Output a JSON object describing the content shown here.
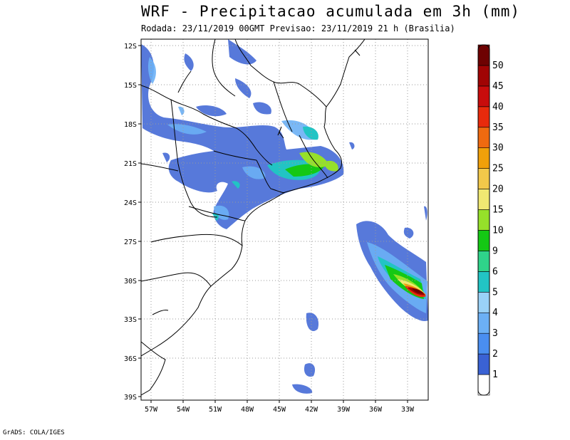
{
  "title": "WRF - Precipitacao acumulada em 3h (mm)",
  "subtitle": "Rodada: 23/11/2019 00GMT Previsao: 23/11/2019 21 h (Brasilia)",
  "credit": "GrADS: COLA/IGES",
  "map": {
    "lat_labels": [
      "12S",
      "15S",
      "18S",
      "21S",
      "24S",
      "27S",
      "30S",
      "33S",
      "36S",
      "39S"
    ],
    "lon_labels": [
      "57W",
      "54W",
      "51W",
      "48W",
      "45W",
      "42W",
      "39W",
      "36W",
      "33W"
    ],
    "grid": true
  },
  "colorbar": {
    "levels": [
      "1",
      "2",
      "3",
      "4",
      "5",
      "6",
      "9",
      "10",
      "15",
      "20",
      "25",
      "30",
      "35",
      "40",
      "45",
      "50"
    ],
    "colors": [
      "#ffffff",
      "#3a62d4",
      "#4a8ef0",
      "#6cb0f5",
      "#9ad2f7",
      "#22c4c4",
      "#2fd38a",
      "#14c814",
      "#96e02a",
      "#f0e872",
      "#f2c84a",
      "#f0a00a",
      "#ef6a10",
      "#e82a0c",
      "#c80c0c",
      "#a00404",
      "#6e0202"
    ]
  }
}
